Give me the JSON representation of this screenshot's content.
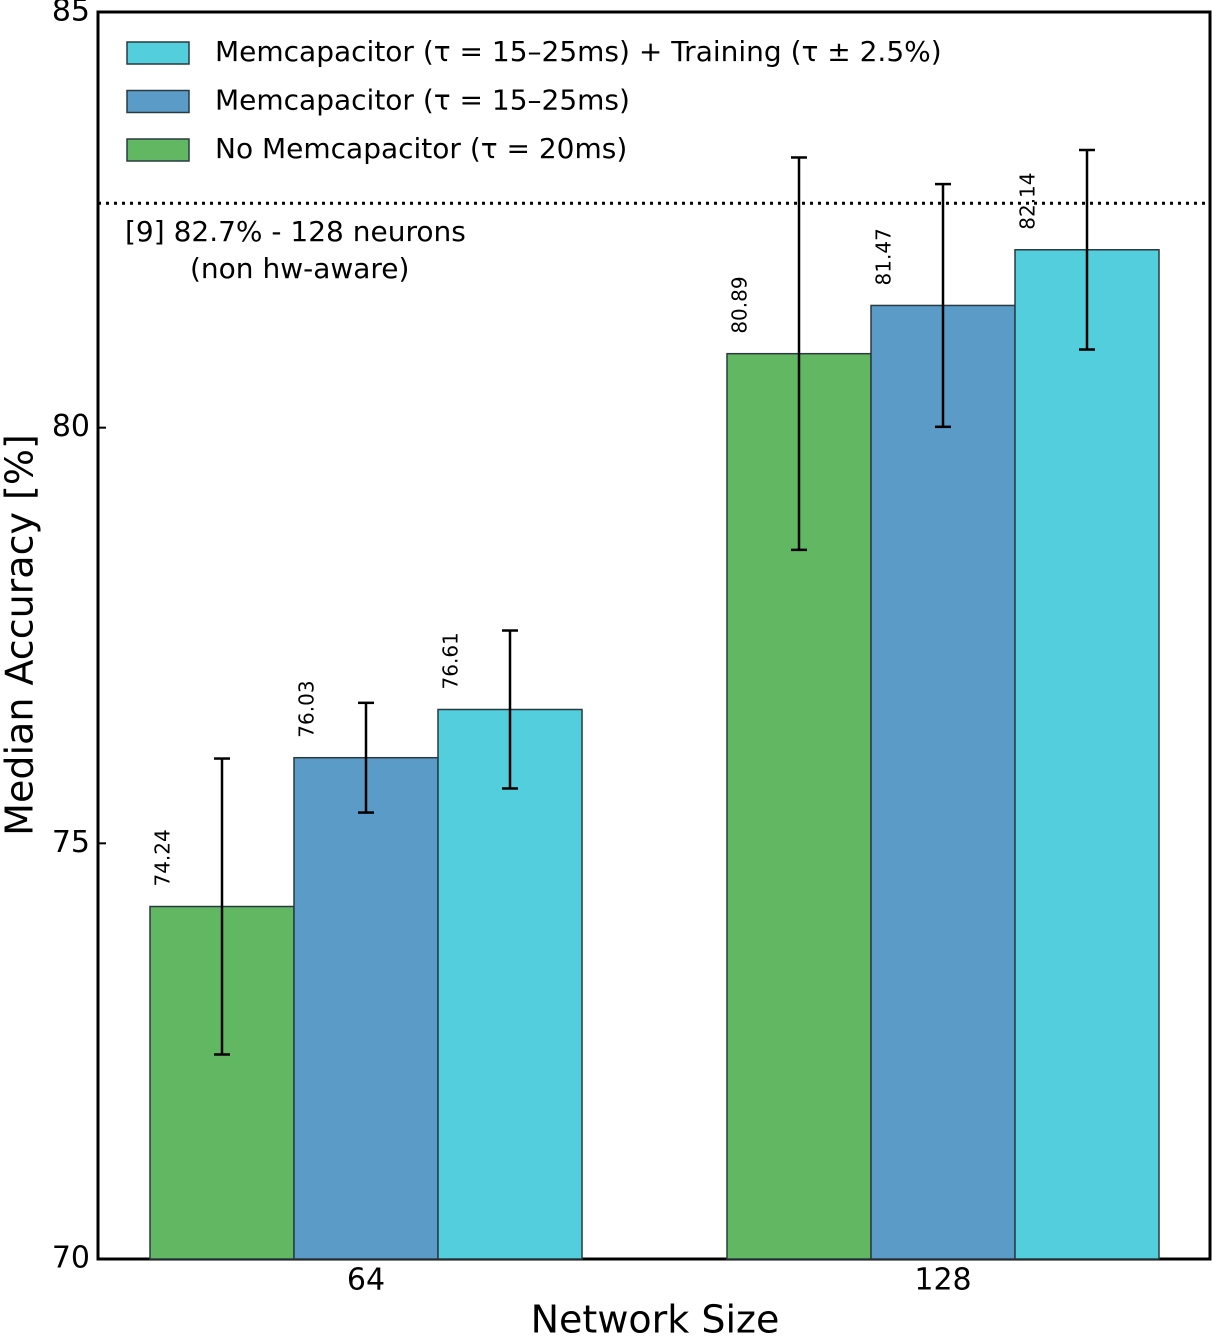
{
  "chart_data": {
    "type": "bar",
    "xlabel": "Network Size",
    "ylabel": "Median Accuracy [%]",
    "categories": [
      "64",
      "128"
    ],
    "series": [
      {
        "name": "No Memcapacitor (τ = 20ms)",
        "color": "#62b862",
        "values": [
          74.24,
          80.89
        ],
        "errors": [
          1.78,
          2.36
        ]
      },
      {
        "name": "Memcapacitor (τ = 15–25ms)",
        "color": "#5a9bc8",
        "values": [
          76.03,
          81.47
        ],
        "errors": [
          0.66,
          1.46
        ]
      },
      {
        "name": "Memcapacitor (τ = 15–25ms) + Training (τ ± 2.5%)",
        "color": "#52cedc",
        "values": [
          76.61,
          82.14
        ],
        "errors": [
          0.95,
          1.2
        ]
      }
    ],
    "reference_line": {
      "value": 82.7,
      "annotation": [
        "[9] 82.7% - 128 neurons",
        "(non hw-aware)"
      ]
    },
    "ylim": [
      70,
      85
    ],
    "yticks": [
      70,
      75,
      80,
      85
    ],
    "legend": "upper left"
  }
}
